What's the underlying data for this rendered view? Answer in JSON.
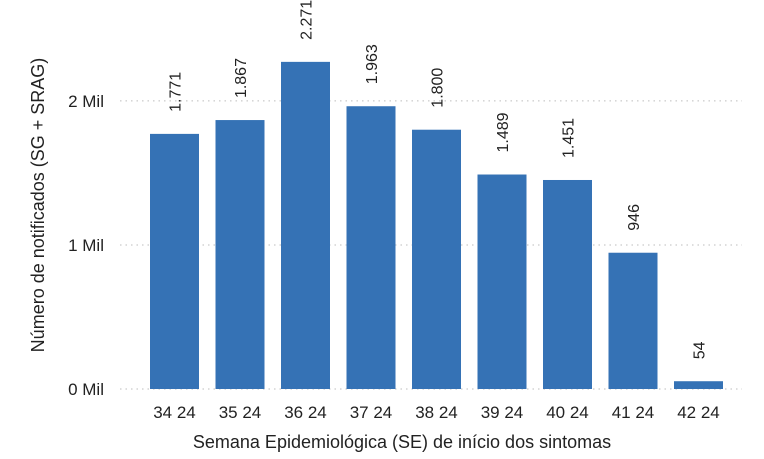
{
  "chart_data": {
    "type": "bar",
    "title": "",
    "xlabel": "Semana Epidemiológica (SE) de início dos sintomas",
    "ylabel": "Número de notificados (SG + SRAG)",
    "categories": [
      "34 24",
      "35 24",
      "36 24",
      "37 24",
      "38 24",
      "39 24",
      "40 24",
      "41 24",
      "42 24"
    ],
    "values": [
      1771,
      1867,
      2271,
      1963,
      1800,
      1489,
      1451,
      946,
      54
    ],
    "data_labels": [
      "1.771",
      "1.867",
      "2.271",
      "1.963",
      "1.800",
      "1.489",
      "1.451",
      "946",
      "54"
    ],
    "yticks": [
      0,
      1000,
      2000
    ],
    "ytick_labels": [
      "0 Mil",
      "1 Mil",
      "2 Mil"
    ],
    "ylim": [
      0,
      2000
    ],
    "grid": true,
    "legend": "none",
    "bar_color": "#3572B5"
  }
}
